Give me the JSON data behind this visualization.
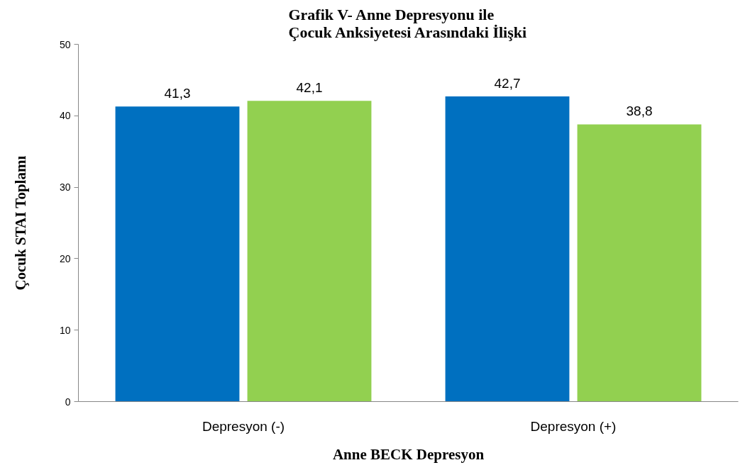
{
  "chart_data": {
    "type": "bar",
    "title": "Grafik V- Anne Depresyonu ile\nÇocuk Anksiyetesi Arasındaki İlişki",
    "xlabel": "Anne BECK Depresyon",
    "ylabel": "Çocuk STAI Toplamı",
    "categories": [
      "Depresyon (-)",
      "Depresyon (+)"
    ],
    "series": [
      {
        "color": "#0070c0",
        "values": [
          41.3,
          42.7
        ],
        "value_labels": [
          "41,3",
          "42,7"
        ]
      },
      {
        "color": "#92d050",
        "values": [
          42.1,
          38.8
        ],
        "value_labels": [
          "42,1",
          "38,8"
        ]
      }
    ],
    "ylim": [
      0,
      50
    ],
    "yticks": [
      0,
      10,
      20,
      30,
      40,
      50
    ],
    "grid": false
  }
}
